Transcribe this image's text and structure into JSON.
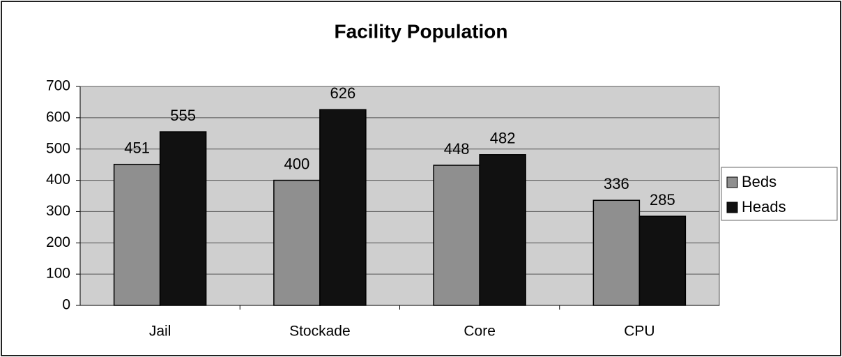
{
  "chart_data": {
    "type": "bar",
    "title": "Facility Population",
    "categories": [
      "Jail",
      "Stockade",
      "Core",
      "CPU"
    ],
    "series": [
      {
        "name": "Beds",
        "color": "#8f8f8f",
        "values": [
          451,
          400,
          448,
          336
        ]
      },
      {
        "name": "Heads",
        "color": "#111111",
        "values": [
          555,
          626,
          482,
          285
        ]
      }
    ],
    "ylim": [
      0,
      700
    ],
    "yticks": [
      0,
      100,
      200,
      300,
      400,
      500,
      600,
      700
    ],
    "grid": true,
    "legend": "right"
  }
}
